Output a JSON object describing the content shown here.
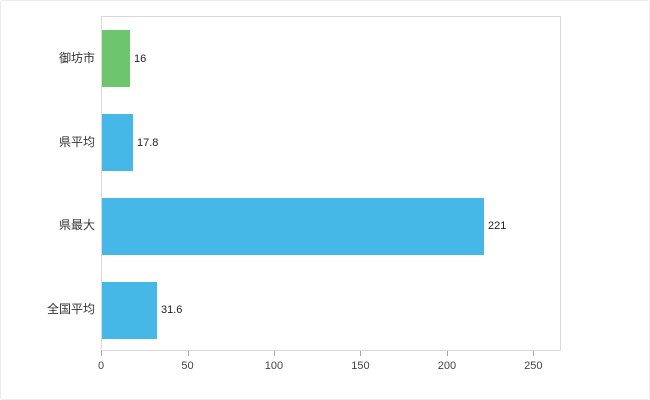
{
  "chart_data": {
    "type": "bar",
    "orientation": "horizontal",
    "title": "",
    "xlabel": "",
    "ylabel": "",
    "categories": [
      "御坊市",
      "県平均",
      "県最大",
      "全国平均"
    ],
    "values": [
      16,
      17.8,
      221,
      31.6
    ],
    "value_labels": [
      "16",
      "17.8",
      "221",
      "31.6"
    ],
    "bar_colors": [
      "#6dc66d",
      "#45b8e8",
      "#45b8e8",
      "#45b8e8"
    ],
    "xlim": [
      0,
      266
    ],
    "x_ticks": [
      0,
      50,
      100,
      150,
      200,
      250
    ],
    "grid": false,
    "legend": false,
    "colors": {
      "highlight_bar": "#6dc66d",
      "default_bar": "#45b8e8",
      "axis_border": "#d9d9d9",
      "tick": "#a6a6a6",
      "label_text": "#333333"
    }
  }
}
